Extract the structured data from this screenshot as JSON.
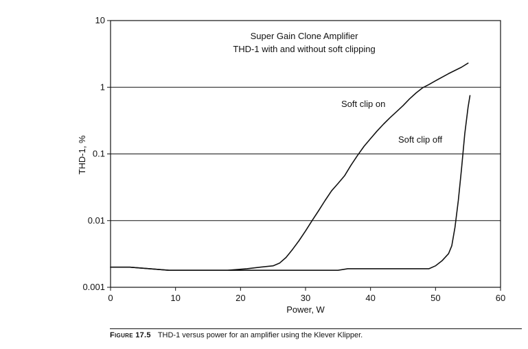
{
  "chart_data": {
    "type": "line",
    "annotation_title": "Super Gain Clone Amplifier",
    "annotation_subtitle": "THD-1 with and without soft clipping",
    "xlabel": "Power, W",
    "ylabel": "THD-1, %",
    "xlim": [
      0,
      60
    ],
    "ylim": [
      0.001,
      10
    ],
    "yscale": "log",
    "x_ticks": [
      "0",
      "10",
      "20",
      "30",
      "40",
      "50",
      "60"
    ],
    "y_ticks": [
      "0.001",
      "0.01",
      "0.1",
      "1",
      "10"
    ],
    "grid": "horizontal",
    "series": [
      {
        "name": "Soft clip on",
        "x": [
          0,
          3,
          6,
          9,
          12,
          15,
          18,
          21,
          23,
          25,
          26,
          27,
          28,
          29,
          30,
          31,
          32,
          33,
          34,
          35,
          36,
          37,
          38,
          39,
          40,
          41,
          42,
          43,
          44,
          45,
          46,
          47,
          48,
          49,
          50,
          52,
          54,
          55
        ],
        "y": [
          0.002,
          0.002,
          0.0019,
          0.0018,
          0.0018,
          0.0018,
          0.0018,
          0.0019,
          0.002,
          0.0021,
          0.0023,
          0.0028,
          0.0037,
          0.005,
          0.007,
          0.01,
          0.014,
          0.02,
          0.028,
          0.036,
          0.047,
          0.068,
          0.095,
          0.13,
          0.17,
          0.22,
          0.28,
          0.35,
          0.43,
          0.53,
          0.67,
          0.82,
          0.98,
          1.1,
          1.25,
          1.6,
          2.0,
          2.3
        ]
      },
      {
        "name": "Soft clip off",
        "x": [
          0,
          3,
          6,
          9,
          12,
          15,
          20,
          25,
          30,
          35,
          36.5,
          40,
          45,
          49,
          50,
          51,
          52,
          52.5,
          53,
          53.5,
          54,
          54.5,
          55,
          55.3
        ],
        "y": [
          0.002,
          0.002,
          0.0019,
          0.0018,
          0.0018,
          0.0018,
          0.0018,
          0.0018,
          0.0018,
          0.0018,
          0.0019,
          0.0019,
          0.0019,
          0.0019,
          0.0021,
          0.0025,
          0.0032,
          0.0042,
          0.008,
          0.02,
          0.06,
          0.2,
          0.5,
          0.75
        ]
      }
    ],
    "labels": [
      {
        "text": "Soft clip on",
        "series": "Soft clip on"
      },
      {
        "text": "Soft clip off",
        "series": "Soft clip off"
      }
    ],
    "line_color": "#111111"
  },
  "caption": {
    "figure_label": "Figure 17.5",
    "text": "THD-1 versus power for an amplifier using the Klever Klipper."
  }
}
